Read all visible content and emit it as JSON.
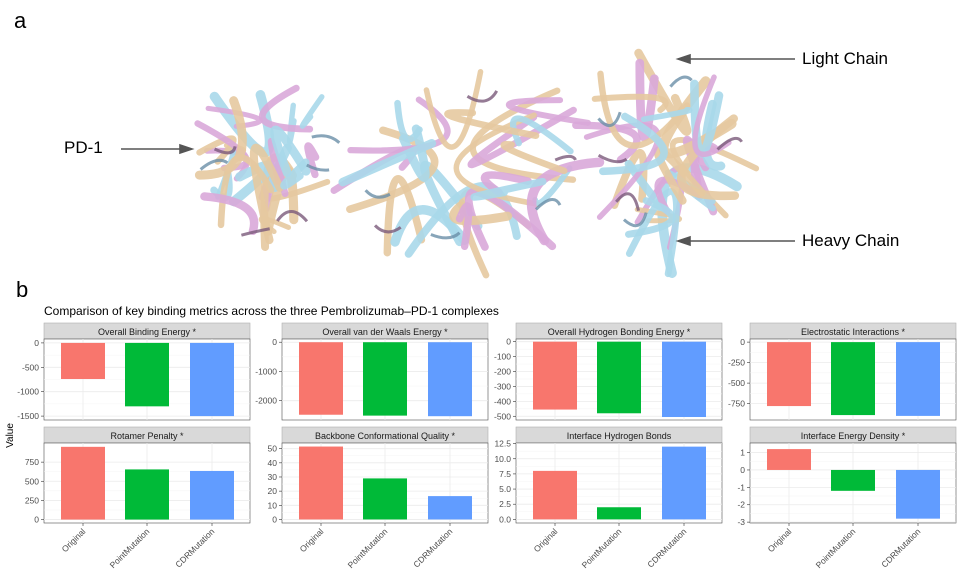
{
  "panel_a": {
    "letter": "a",
    "labels": {
      "light_chain": "Light Chain",
      "heavy_chain": "Heavy Chain",
      "pd1": "PD-1"
    },
    "structure_colors": [
      "#e6c9a0",
      "#a8d8ea",
      "#d9a9d9",
      "#6a8fa8",
      "#7a5a7a"
    ]
  },
  "panel_b": {
    "letter": "b",
    "title": "Comparison of key binding metrics across the three Pembrolizumab–PD-1 complexes",
    "y_axis_title": "Value",
    "colors": {
      "Original": "#f8766d",
      "PointMutation": "#00ba38",
      "CDRMutation": "#619cff"
    },
    "strip_color": "#d9d9d9"
  },
  "chart_data": [
    {
      "type": "bar",
      "title": "Overall Binding Energy *",
      "categories": [
        "Original",
        "PointMutation",
        "CDRMutation"
      ],
      "values": [
        -740,
        -1300,
        -1500
      ],
      "ylim": [
        -1580,
        80
      ],
      "ticks": [
        0,
        -500,
        -1000,
        -1500
      ],
      "tick_labels": [
        "0",
        "-500",
        "-1000",
        "-1500"
      ],
      "grid": true
    },
    {
      "type": "bar",
      "title": "Overall van der Waals Energy *",
      "categories": [
        "Original",
        "PointMutation",
        "CDRMutation"
      ],
      "values": [
        -2480,
        -2510,
        -2530
      ],
      "ylim": [
        -2660,
        110
      ],
      "ticks": [
        0,
        -1000,
        -2000
      ],
      "tick_labels": [
        "0",
        "-1000",
        "-2000"
      ],
      "grid": true
    },
    {
      "type": "bar",
      "title": "Overall Hydrogen Bonding Energy *",
      "categories": [
        "Original",
        "PointMutation",
        "CDRMutation"
      ],
      "values": [
        -455,
        -480,
        -505
      ],
      "ylim": [
        -525,
        18
      ],
      "ticks": [
        0,
        -100,
        -200,
        -300,
        -400,
        -500
      ],
      "tick_labels": [
        "0",
        "-100",
        "-200",
        "-300",
        "-400",
        "-500"
      ],
      "grid": true
    },
    {
      "type": "bar",
      "title": "Electrostatic Interactions *",
      "categories": [
        "Original",
        "PointMutation",
        "CDRMutation"
      ],
      "values": [
        -780,
        -890,
        -900
      ],
      "ylim": [
        -950,
        38
      ],
      "ticks": [
        0,
        -250,
        -500,
        -750
      ],
      "tick_labels": [
        "0",
        "-250",
        "-500",
        "-750"
      ],
      "grid": true
    },
    {
      "type": "bar",
      "title": "Rotamer Penalty *",
      "categories": [
        "Original",
        "PointMutation",
        "CDRMutation"
      ],
      "values": [
        950,
        655,
        635
      ],
      "ylim": [
        -45,
        1000
      ],
      "ticks": [
        0,
        250,
        500,
        750
      ],
      "tick_labels": [
        "0",
        "250",
        "500",
        "750"
      ],
      "grid": true
    },
    {
      "type": "bar",
      "title": "Backbone Conformational Quality *",
      "categories": [
        "Original",
        "PointMutation",
        "CDRMutation"
      ],
      "values": [
        51.5,
        29,
        16.5
      ],
      "ylim": [
        -2.5,
        54
      ],
      "ticks": [
        0,
        10,
        20,
        30,
        40,
        50
      ],
      "tick_labels": [
        "0",
        "10",
        "20",
        "30",
        "40",
        "50"
      ],
      "grid": true
    },
    {
      "type": "bar",
      "title": "Interface Hydrogen Bonds",
      "categories": [
        "Original",
        "PointMutation",
        "CDRMutation"
      ],
      "values": [
        8,
        2,
        12
      ],
      "ylim": [
        -0.6,
        12.6
      ],
      "ticks": [
        0,
        2.5,
        5,
        7.5,
        10,
        12.5
      ],
      "tick_labels": [
        "0.0",
        "2.5",
        "5.0",
        "7.5",
        "10.0",
        "12.5"
      ],
      "grid": true
    },
    {
      "type": "bar",
      "title": "Interface Energy Density *",
      "categories": [
        "Original",
        "PointMutation",
        "CDRMutation"
      ],
      "values": [
        1.2,
        -1.2,
        -2.8
      ],
      "ylim": [
        -3.05,
        1.55
      ],
      "ticks": [
        1,
        0,
        -1,
        -2,
        -3
      ],
      "tick_labels": [
        "1",
        "0",
        "-1",
        "-2",
        "-3"
      ],
      "grid": true
    }
  ]
}
